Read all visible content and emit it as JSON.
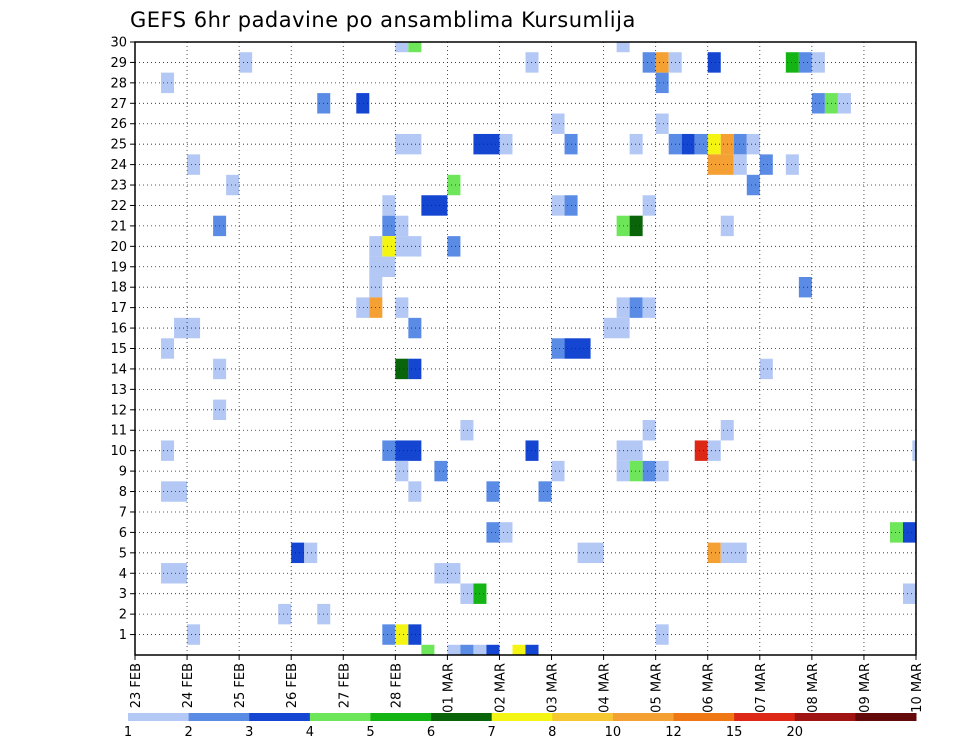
{
  "chart_data": {
    "type": "heatmap",
    "title": "GEFS 6hr padavine po ansamblima Kursumlija",
    "x_tick_labels": [
      "23 FEB",
      "24 FEB",
      "25 FEB",
      "26 FEB",
      "27 FEB",
      "28 FEB",
      "01 MAR",
      "02 MAR",
      "03 MAR",
      "04 MAR",
      "05 MAR",
      "06 MAR",
      "07 MAR",
      "08 MAR",
      "09 MAR",
      "10 MAR"
    ],
    "y_tick_labels": [
      "1",
      "2",
      "3",
      "4",
      "5",
      "6",
      "7",
      "8",
      "9",
      "10",
      "11",
      "12",
      "13",
      "14",
      "15",
      "16",
      "17",
      "18",
      "19",
      "20",
      "21",
      "22",
      "23",
      "24",
      "25",
      "26",
      "27",
      "28",
      "29",
      "30"
    ],
    "xlim": [
      0,
      15
    ],
    "ylim": [
      0,
      30
    ],
    "grid": true,
    "colorbar": {
      "labels": [
        "1",
        "2",
        "3",
        "4",
        "5",
        "6",
        "7",
        "8",
        "10",
        "12",
        "15",
        "20"
      ],
      "colors": [
        "#b4c8f5",
        "#5a8ce6",
        "#1446d2",
        "#6ee65a",
        "#14b414",
        "#0a640a",
        "#f5f514",
        "#f5c832",
        "#f5a032",
        "#f07814",
        "#dc2814",
        "#a01414",
        "#640a0a"
      ]
    },
    "cells": [
      [
        1.0,
        1,
        1.25,
        "#b4c8f5"
      ],
      [
        2.75,
        2,
        3.0,
        "#b4c8f5"
      ],
      [
        5.0,
        30,
        5.25,
        "#b4c8f5"
      ],
      [
        5.25,
        30,
        5.5,
        "#6ee65a"
      ],
      [
        9.25,
        30,
        9.5,
        "#b4c8f5"
      ],
      [
        2.0,
        29,
        2.25,
        "#b4c8f5"
      ],
      [
        7.5,
        29,
        7.75,
        "#b4c8f5"
      ],
      [
        9.75,
        29,
        10.0,
        "#5a8ce6"
      ],
      [
        10.0,
        29,
        10.25,
        "#f5a032"
      ],
      [
        10.25,
        29,
        10.5,
        "#b4c8f5"
      ],
      [
        11.0,
        29,
        11.25,
        "#1446d2"
      ],
      [
        12.5,
        29,
        12.75,
        "#14b414"
      ],
      [
        12.75,
        29,
        13.0,
        "#5a8ce6"
      ],
      [
        13.0,
        29,
        13.25,
        "#b4c8f5"
      ],
      [
        0.5,
        28,
        0.75,
        "#b4c8f5"
      ],
      [
        10.0,
        28,
        10.25,
        "#5a8ce6"
      ],
      [
        3.5,
        27,
        3.75,
        "#5a8ce6"
      ],
      [
        4.25,
        27,
        4.5,
        "#1446d2"
      ],
      [
        13.0,
        27,
        13.25,
        "#5a8ce6"
      ],
      [
        13.25,
        27,
        13.5,
        "#6ee65a"
      ],
      [
        13.5,
        27,
        13.75,
        "#b4c8f5"
      ],
      [
        8.0,
        26,
        8.25,
        "#b4c8f5"
      ],
      [
        10.0,
        26,
        10.25,
        "#b4c8f5"
      ],
      [
        5.0,
        25,
        5.5,
        "#b4c8f5"
      ],
      [
        6.5,
        25,
        7.0,
        "#1446d2"
      ],
      [
        7.0,
        25,
        7.25,
        "#b4c8f5"
      ],
      [
        8.25,
        25,
        8.5,
        "#5a8ce6"
      ],
      [
        9.5,
        25,
        9.75,
        "#b4c8f5"
      ],
      [
        10.25,
        25,
        10.5,
        "#5a8ce6"
      ],
      [
        10.5,
        25,
        10.75,
        "#1446d2"
      ],
      [
        10.75,
        25,
        11.0,
        "#5a8ce6"
      ],
      [
        11.0,
        25,
        11.25,
        "#f5f514"
      ],
      [
        11.25,
        25,
        11.5,
        "#f5a032"
      ],
      [
        11.5,
        25,
        11.75,
        "#5a8ce6"
      ],
      [
        11.75,
        25,
        12.0,
        "#b4c8f5"
      ],
      [
        1.0,
        24,
        1.25,
        "#b4c8f5"
      ],
      [
        11.0,
        24,
        11.5,
        "#f5a032"
      ],
      [
        11.5,
        24,
        11.75,
        "#b4c8f5"
      ],
      [
        12.0,
        24,
        12.25,
        "#5a8ce6"
      ],
      [
        12.5,
        24,
        12.75,
        "#b4c8f5"
      ],
      [
        1.75,
        23,
        2.0,
        "#b4c8f5"
      ],
      [
        6.0,
        23,
        6.25,
        "#6ee65a"
      ],
      [
        11.75,
        23,
        12.0,
        "#5a8ce6"
      ],
      [
        4.75,
        22,
        5.0,
        "#b4c8f5"
      ],
      [
        5.5,
        22,
        6.0,
        "#1446d2"
      ],
      [
        8.0,
        22,
        8.25,
        "#b4c8f5"
      ],
      [
        8.25,
        22,
        8.5,
        "#5a8ce6"
      ],
      [
        9.75,
        22,
        10.0,
        "#b4c8f5"
      ],
      [
        1.5,
        21,
        1.75,
        "#5a8ce6"
      ],
      [
        4.75,
        21,
        5.0,
        "#5a8ce6"
      ],
      [
        5.0,
        21,
        5.25,
        "#b4c8f5"
      ],
      [
        9.25,
        21,
        9.5,
        "#6ee65a"
      ],
      [
        9.5,
        21,
        9.75,
        "#0a640a"
      ],
      [
        11.25,
        21,
        11.5,
        "#b4c8f5"
      ],
      [
        4.5,
        20,
        4.75,
        "#b4c8f5"
      ],
      [
        4.75,
        20,
        5.0,
        "#f5f514"
      ],
      [
        5.0,
        20,
        5.5,
        "#b4c8f5"
      ],
      [
        6.0,
        20,
        6.25,
        "#5a8ce6"
      ],
      [
        4.5,
        19,
        5.0,
        "#b4c8f5"
      ],
      [
        4.5,
        18,
        4.75,
        "#b4c8f5"
      ],
      [
        12.75,
        18,
        13.0,
        "#5a8ce6"
      ],
      [
        4.25,
        17,
        4.5,
        "#b4c8f5"
      ],
      [
        4.5,
        17,
        4.75,
        "#f5a032"
      ],
      [
        5.0,
        17,
        5.25,
        "#b4c8f5"
      ],
      [
        9.25,
        17,
        9.5,
        "#b4c8f5"
      ],
      [
        9.5,
        17,
        9.75,
        "#5a8ce6"
      ],
      [
        9.75,
        17,
        10.0,
        "#b4c8f5"
      ],
      [
        0.75,
        16,
        1.25,
        "#b4c8f5"
      ],
      [
        5.25,
        16,
        5.5,
        "#5a8ce6"
      ],
      [
        9.0,
        16,
        9.5,
        "#b4c8f5"
      ],
      [
        0.5,
        15,
        0.75,
        "#b4c8f5"
      ],
      [
        8.0,
        15,
        8.25,
        "#5a8ce6"
      ],
      [
        8.25,
        15,
        8.75,
        "#1446d2"
      ],
      [
        1.5,
        14,
        1.75,
        "#b4c8f5"
      ],
      [
        5.0,
        14,
        5.25,
        "#0a640a"
      ],
      [
        5.25,
        14,
        5.5,
        "#1446d2"
      ],
      [
        12.0,
        14,
        12.25,
        "#b4c8f5"
      ],
      [
        1.5,
        12,
        1.75,
        "#b4c8f5"
      ],
      [
        6.25,
        11,
        6.5,
        "#b4c8f5"
      ],
      [
        9.75,
        11,
        10.0,
        "#b4c8f5"
      ],
      [
        11.25,
        11,
        11.5,
        "#b4c8f5"
      ],
      [
        0.5,
        10,
        0.75,
        "#b4c8f5"
      ],
      [
        4.75,
        10,
        5.0,
        "#5a8ce6"
      ],
      [
        5.0,
        10,
        5.5,
        "#1446d2"
      ],
      [
        7.5,
        10,
        7.75,
        "#1446d2"
      ],
      [
        9.25,
        10,
        9.75,
        "#b4c8f5"
      ],
      [
        10.75,
        10,
        11.0,
        "#dc2814"
      ],
      [
        11.0,
        10,
        11.25,
        "#b4c8f5"
      ],
      [
        14.93,
        10,
        15.0,
        "#b4c8f5"
      ],
      [
        5.0,
        9,
        5.25,
        "#b4c8f5"
      ],
      [
        5.75,
        9,
        6.0,
        "#5a8ce6"
      ],
      [
        8.0,
        9,
        8.25,
        "#b4c8f5"
      ],
      [
        9.25,
        9,
        9.5,
        "#b4c8f5"
      ],
      [
        9.5,
        9,
        9.75,
        "#6ee65a"
      ],
      [
        9.75,
        9,
        10.0,
        "#5a8ce6"
      ],
      [
        10.0,
        9,
        10.25,
        "#b4c8f5"
      ],
      [
        0.5,
        8,
        1.0,
        "#b4c8f5"
      ],
      [
        5.25,
        8,
        5.5,
        "#b4c8f5"
      ],
      [
        6.75,
        8,
        7.0,
        "#5a8ce6"
      ],
      [
        7.75,
        8,
        8.0,
        "#5a8ce6"
      ],
      [
        6.75,
        6,
        7.0,
        "#5a8ce6"
      ],
      [
        7.0,
        6,
        7.25,
        "#b4c8f5"
      ],
      [
        14.5,
        6,
        14.75,
        "#6ee65a"
      ],
      [
        14.75,
        6,
        15.0,
        "#1446d2"
      ],
      [
        3.0,
        5,
        3.25,
        "#1446d2"
      ],
      [
        3.25,
        5,
        3.5,
        "#b4c8f5"
      ],
      [
        8.5,
        5,
        9.0,
        "#b4c8f5"
      ],
      [
        11.0,
        5,
        11.25,
        "#f5a032"
      ],
      [
        11.25,
        5,
        11.75,
        "#b4c8f5"
      ],
      [
        0.5,
        4,
        1.0,
        "#b4c8f5"
      ],
      [
        5.75,
        4,
        6.25,
        "#b4c8f5"
      ],
      [
        6.25,
        3,
        6.5,
        "#b4c8f5"
      ],
      [
        6.5,
        3,
        6.75,
        "#14b414"
      ],
      [
        14.75,
        3,
        15.0,
        "#b4c8f5"
      ],
      [
        3.5,
        2,
        3.75,
        "#b4c8f5"
      ],
      [
        4.75,
        1,
        5.0,
        "#5a8ce6"
      ],
      [
        5.0,
        1,
        5.25,
        "#f5f514"
      ],
      [
        5.25,
        1,
        5.5,
        "#1446d2"
      ],
      [
        10.0,
        1,
        10.25,
        "#b4c8f5"
      ],
      [
        5.5,
        0,
        5.75,
        "#6ee65a"
      ],
      [
        6.0,
        0,
        6.25,
        "#b4c8f5"
      ],
      [
        6.25,
        0,
        6.5,
        "#5a8ce6"
      ],
      [
        6.5,
        0,
        6.75,
        "#b4c8f5"
      ],
      [
        6.75,
        0,
        7.0,
        "#1446d2"
      ],
      [
        7.25,
        0,
        7.5,
        "#f5f514"
      ],
      [
        7.5,
        0,
        7.75,
        "#1446d2"
      ]
    ]
  }
}
